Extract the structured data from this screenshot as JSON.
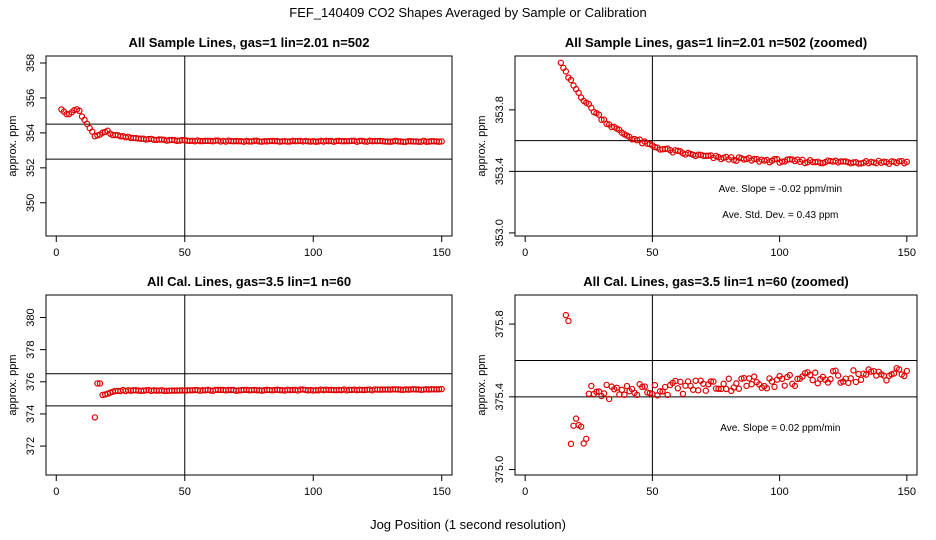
{
  "page": {
    "title": "FEF_140409  CO2 Shapes Averaged by Sample or Calibration",
    "x_axis_title": "Jog Position (1 second resolution)"
  },
  "colors": {
    "points": "#e00000",
    "lines": "#000000"
  },
  "chart_data": [
    {
      "type": "scatter",
      "title": "All Sample Lines, gas=1 lin=2.01 n=502",
      "ylabel": "approx. ppm",
      "xlim": [
        -4,
        154
      ],
      "ylim": [
        348.1,
        358.4
      ],
      "x_ticks": [
        0,
        50,
        100,
        150
      ],
      "y_ticks": [
        350,
        352,
        354,
        356,
        358
      ],
      "y_tick_labels": [
        "350",
        "352",
        "354",
        "356",
        "358"
      ],
      "vline": 50,
      "hlines": [
        352.5,
        354.5
      ],
      "annotations": [],
      "shape": "sample",
      "series": [
        {
          "name": "",
          "x_start": 2,
          "x_end": 150,
          "y_start": 355.4,
          "y_plateau": 353.52,
          "slope_per_pt": 0,
          "noise": 0.03
        }
      ]
    },
    {
      "type": "scatter",
      "title": "All Sample Lines, gas=1 lin=2.01 n=502 (zoomed)",
      "ylabel": "approx. ppm",
      "xlim": [
        -4,
        154
      ],
      "ylim": [
        352.98,
        354.15
      ],
      "x_ticks": [
        0,
        50,
        100,
        150
      ],
      "y_ticks": [
        353.0,
        353.4,
        353.8
      ],
      "y_tick_labels": [
        "353.0",
        "353.4",
        "353.8"
      ],
      "vline": 50,
      "hlines": [
        353.4,
        353.6
      ],
      "annotations": [
        "Ave. Slope =  -0.02  ppm/min",
        "Ave. Std. Dev. =  0.43  ppm"
      ],
      "shape": "sample_zoom",
      "series": [
        {
          "name": "",
          "x_start": 14,
          "x_end": 150,
          "y_start": 354.1,
          "y_plateau": 353.46,
          "slope_per_pt": 0,
          "noise": 0.012
        }
      ]
    },
    {
      "type": "scatter",
      "title": "All Cal. Lines, gas=3.5 lin=1 n=60",
      "ylabel": "approx. ppm",
      "xlim": [
        -4,
        154
      ],
      "ylim": [
        370.2,
        381.4
      ],
      "x_ticks": [
        0,
        50,
        100,
        150
      ],
      "y_ticks": [
        372,
        374,
        376,
        378,
        380
      ],
      "y_tick_labels": [
        "372",
        "374",
        "376",
        "378",
        "380"
      ],
      "vline": 50,
      "hlines": [
        374.5,
        376.5
      ],
      "annotations": [],
      "shape": "cal",
      "series": [
        {
          "name": "",
          "x_start": 15,
          "x_end": 150,
          "y_start": 373.8,
          "y_plateau": 375.45,
          "slope_per_pt": 0.0005,
          "noise": 0.03
        }
      ]
    },
    {
      "type": "scatter",
      "title": "All Cal. Lines, gas=3.5 lin=1 n=60 (zoomed)",
      "ylabel": "approx. ppm",
      "xlim": [
        -4,
        154
      ],
      "ylim": [
        374.97,
        375.96
      ],
      "x_ticks": [
        0,
        50,
        100,
        150
      ],
      "y_ticks": [
        375.0,
        375.4,
        375.8
      ],
      "y_tick_labels": [
        "375.0",
        "375.4",
        "375.8"
      ],
      "vline": 50,
      "hlines": [
        375.4,
        375.6
      ],
      "annotations": [
        "Ave. Slope =  0.02  ppm/min"
      ],
      "shape": "cal_zoom",
      "series": [
        {
          "name": "",
          "x_start": 16,
          "x_end": 150,
          "y_start": 375.87,
          "y_plateau": 375.5,
          "slope_per_pt": 0.0003,
          "noise": 0.025
        }
      ]
    }
  ]
}
